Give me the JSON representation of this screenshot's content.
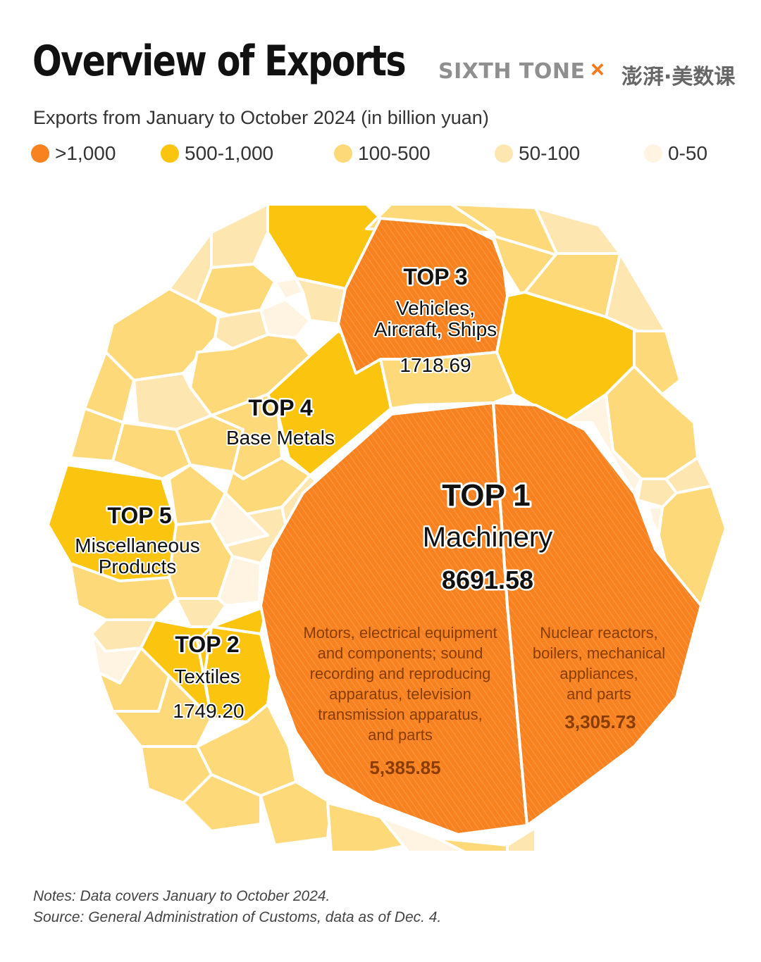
{
  "title": "Overview of Exports",
  "brand": {
    "left": "SIXTH TONE",
    "cross": "×",
    "right": "澎湃·美数课"
  },
  "subtitle": "Exports from January to October 2024 (in billion yuan)",
  "colors": {
    "gt1000": "#f7821f",
    "b500_1000": "#fbc40f",
    "b100_500": "#fdd97a",
    "b50_100": "#fee6b1",
    "b0_50": "#fff4e1",
    "outline": "#ffffff",
    "label_text": "#111111",
    "sub_text": "#8a3d00"
  },
  "legend": [
    {
      "label": ">1,000",
      "color": "#f7821f"
    },
    {
      "label": "500-1,000",
      "color": "#fbc40f"
    },
    {
      "label": "100-500",
      "color": "#fdd97a"
    },
    {
      "label": "50-100",
      "color": "#fee6b1"
    },
    {
      "label": "0-50",
      "color": "#fff4e1"
    }
  ],
  "chart_data": {
    "type": "voronoi-treemap",
    "unit": "billion yuan",
    "highlights": [
      {
        "rank": "TOP 1",
        "name": "Machinery",
        "value": "8691.58",
        "parts": [
          {
            "name": [
              "Motors, electrical equipment",
              "and components; sound",
              "recording and reproducing",
              "apparatus, television",
              "transmission apparatus,",
              "and parts"
            ],
            "value": "5,385.85"
          },
          {
            "name": [
              "Nuclear reactors,",
              "boilers, mechanical",
              "appliances,",
              "and parts"
            ],
            "value": "3,305.73"
          }
        ]
      },
      {
        "rank": "TOP 2",
        "name": "Textiles",
        "value": "1749.20"
      },
      {
        "rank": "TOP 3",
        "name": [
          "Vehicles,",
          "Aircraft, Ships"
        ],
        "value": "1718.69"
      },
      {
        "rank": "TOP 4",
        "name": "Base Metals",
        "value": ""
      },
      {
        "rank": "TOP 5",
        "name": [
          "Miscellaneous",
          "Products"
        ],
        "value": ""
      }
    ]
  },
  "notes": [
    "Notes: Data covers January to October 2024.",
    "Source: General Administration of Customs, data as of Dec. 4."
  ]
}
